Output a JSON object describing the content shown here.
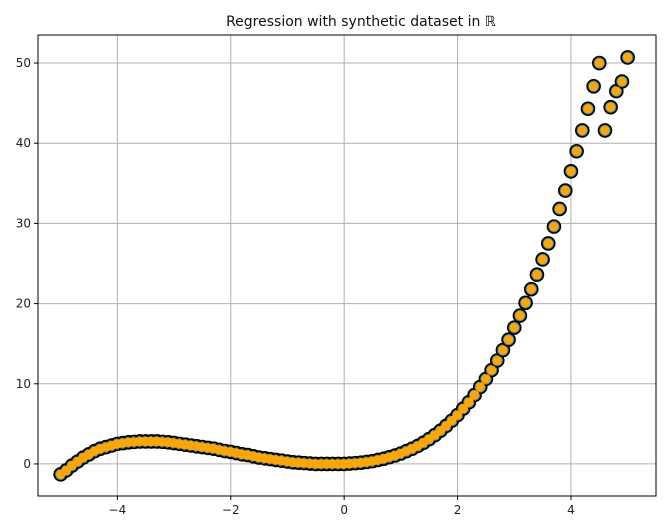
{
  "chart_data": {
    "type": "scatter",
    "title": "Regression with synthetic dataset in ℝ",
    "xlabel": "",
    "ylabel": "",
    "xlim": [
      -5.4,
      5.5
    ],
    "ylim": [
      -4.0,
      53.5
    ],
    "grid": true,
    "legend": "none",
    "xticks": [
      -4,
      -2,
      0,
      2,
      4
    ],
    "xtick_labels": [
      "−4",
      "−2",
      "0",
      "2",
      "4"
    ],
    "yticks": [
      0,
      10,
      20,
      30,
      40,
      50
    ],
    "ytick_labels": [
      "0",
      "10",
      "20",
      "30",
      "40",
      "50"
    ],
    "series": [
      {
        "marker": "circle-large",
        "color": "#1f77b4",
        "edgecolor": "#000000",
        "x": [
          -5.0,
          -4.9,
          -4.8,
          -4.7,
          -4.6,
          -4.5,
          -4.4,
          -4.3,
          -4.2,
          -4.1,
          -4.0,
          -3.9,
          -3.8,
          -3.7,
          -3.6,
          -3.5,
          -3.4,
          -3.3,
          -3.2,
          -3.1,
          -3.0,
          -2.9,
          -2.8,
          -2.7,
          -2.6,
          -2.5,
          -2.4,
          -2.3,
          -2.2,
          -2.1,
          -2.0,
          -1.9,
          -1.8,
          -1.7,
          -1.6,
          -1.5,
          -1.4,
          -1.3,
          -1.2,
          -1.1,
          -1.0,
          -0.9,
          -0.8,
          -0.7,
          -0.6,
          -0.5,
          -0.4,
          -0.3,
          -0.2,
          -0.1,
          0.0,
          0.1,
          0.2,
          0.3,
          0.4,
          0.5,
          0.6,
          0.7,
          0.8,
          0.9,
          1.0,
          1.1,
          1.2,
          1.3,
          1.4,
          1.5,
          1.6,
          1.7,
          1.8,
          1.9,
          2.0,
          2.1,
          2.2,
          2.3,
          2.4,
          2.5,
          2.6,
          2.7,
          2.8,
          2.9,
          3.0,
          3.1,
          3.2,
          3.3,
          3.4,
          3.5,
          3.6,
          3.7,
          3.8,
          3.9,
          4.0,
          4.1,
          4.2,
          4.3,
          4.4,
          4.5,
          4.6,
          4.7,
          4.8,
          4.9,
          5.0
        ],
        "y": [
          -1.3,
          -0.8,
          -0.2,
          0.3,
          0.8,
          1.2,
          1.6,
          1.9,
          2.1,
          2.3,
          2.5,
          2.6,
          2.7,
          2.75,
          2.8,
          2.8,
          2.8,
          2.8,
          2.75,
          2.7,
          2.6,
          2.5,
          2.4,
          2.3,
          2.2,
          2.1,
          2.0,
          1.9,
          1.75,
          1.6,
          1.5,
          1.35,
          1.2,
          1.1,
          0.95,
          0.8,
          0.7,
          0.6,
          0.5,
          0.4,
          0.3,
          0.2,
          0.15,
          0.1,
          0.05,
          0.0,
          0.0,
          0.0,
          0.0,
          0.0,
          0.0,
          0.05,
          0.1,
          0.15,
          0.25,
          0.35,
          0.5,
          0.65,
          0.85,
          1.05,
          1.3,
          1.6,
          1.9,
          2.25,
          2.65,
          3.1,
          3.6,
          4.15,
          4.75,
          5.4,
          6.1,
          6.9,
          7.7,
          8.6,
          9.6,
          10.6,
          11.7,
          12.9,
          14.2,
          15.5,
          17.0,
          18.5,
          20.1,
          21.8,
          23.6,
          25.5,
          27.5,
          29.6,
          31.8,
          34.1,
          36.5,
          39.0,
          41.6,
          44.3,
          47.1,
          50.0,
          41.6,
          44.5,
          46.5,
          47.7,
          50.7
        ]
      },
      {
        "marker": "circle-small",
        "color": "#ffa500",
        "x": [
          -5.0,
          -4.9,
          -4.8,
          -4.7,
          -4.6,
          -4.5,
          -4.4,
          -4.3,
          -4.2,
          -4.1,
          -4.0,
          -3.9,
          -3.8,
          -3.7,
          -3.6,
          -3.5,
          -3.4,
          -3.3,
          -3.2,
          -3.1,
          -3.0,
          -2.9,
          -2.8,
          -2.7,
          -2.6,
          -2.5,
          -2.4,
          -2.3,
          -2.2,
          -2.1,
          -2.0,
          -1.9,
          -1.8,
          -1.7,
          -1.6,
          -1.5,
          -1.4,
          -1.3,
          -1.2,
          -1.1,
          -1.0,
          -0.9,
          -0.8,
          -0.7,
          -0.6,
          -0.5,
          -0.4,
          -0.3,
          -0.2,
          -0.1,
          0.0,
          0.1,
          0.2,
          0.3,
          0.4,
          0.5,
          0.6,
          0.7,
          0.8,
          0.9,
          1.0,
          1.1,
          1.2,
          1.3,
          1.4,
          1.5,
          1.6,
          1.7,
          1.8,
          1.9,
          2.0,
          2.1,
          2.2,
          2.3,
          2.4,
          2.5,
          2.6,
          2.7,
          2.8,
          2.9,
          3.0,
          3.1,
          3.2,
          3.3,
          3.4,
          3.5,
          3.6,
          3.7,
          3.8,
          3.9,
          4.0,
          4.1,
          4.2,
          4.3,
          4.4,
          4.5,
          4.6,
          4.7,
          4.8,
          4.9,
          5.0
        ],
        "y": [
          -1.3,
          -0.8,
          -0.2,
          0.3,
          0.8,
          1.2,
          1.6,
          1.9,
          2.1,
          2.3,
          2.5,
          2.6,
          2.7,
          2.75,
          2.8,
          2.8,
          2.8,
          2.8,
          2.75,
          2.7,
          2.6,
          2.5,
          2.4,
          2.3,
          2.2,
          2.1,
          2.0,
          1.9,
          1.75,
          1.6,
          1.5,
          1.35,
          1.2,
          1.1,
          0.95,
          0.8,
          0.7,
          0.6,
          0.5,
          0.4,
          0.3,
          0.2,
          0.15,
          0.1,
          0.05,
          0.0,
          0.0,
          0.0,
          0.0,
          0.0,
          0.0,
          0.05,
          0.1,
          0.15,
          0.25,
          0.35,
          0.5,
          0.65,
          0.85,
          1.05,
          1.3,
          1.6,
          1.9,
          2.25,
          2.65,
          3.1,
          3.6,
          4.15,
          4.75,
          5.4,
          6.1,
          6.9,
          7.7,
          8.6,
          9.6,
          10.6,
          11.7,
          12.9,
          14.2,
          15.5,
          17.0,
          18.5,
          20.1,
          21.8,
          23.6,
          25.5,
          27.5,
          29.6,
          31.8,
          34.1,
          36.5,
          39.0,
          41.6,
          44.3,
          47.1,
          50.0,
          41.6,
          44.5,
          46.5,
          47.7,
          50.7
        ]
      }
    ]
  },
  "colors": {
    "grid": "#b0b0b0",
    "axes": "#000000",
    "background": "#ffffff"
  }
}
